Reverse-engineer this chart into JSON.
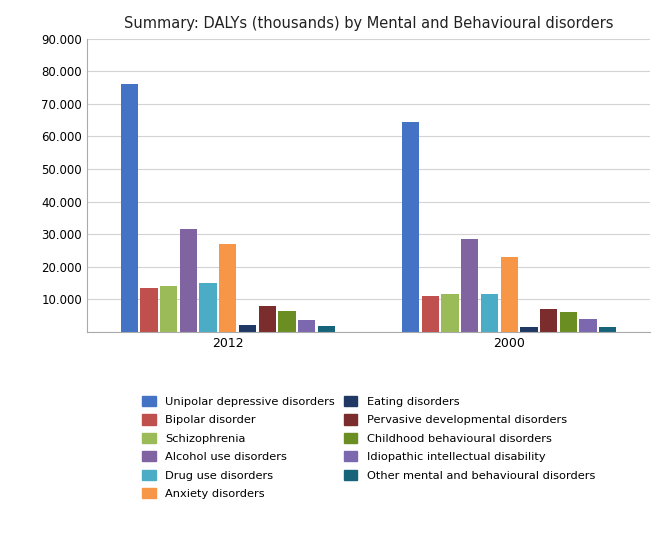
{
  "title": "Summary: DALYs (thousands) by Mental and Behavioural disorders",
  "years": [
    "2012",
    "2000"
  ],
  "categories": [
    "Unipolar depressive disorders",
    "Bipolar disorder",
    "Schizophrenia",
    "Alcohol use disorders",
    "Drug use disorders",
    "Anxiety disorders",
    "Eating disorders",
    "Pervasive developmental disorders",
    "Childhood behavioural disorders",
    "Idiopathic intellectual disability",
    "Other mental and behavioural disorders"
  ],
  "legend_col1": [
    "Unipolar depressive disorders",
    "Schizophrenia",
    "Drug use disorders",
    "Eating disorders",
    "Childhood behavioural disorders",
    "Other mental and behavioural disorders"
  ],
  "legend_col2": [
    "Bipolar disorder",
    "Alcohol use disorders",
    "Anxiety disorders",
    "Pervasive developmental disorders",
    "Idiopathic intellectual disability"
  ],
  "colors": {
    "Unipolar depressive disorders": "#4472C4",
    "Bipolar disorder": "#C0504D",
    "Schizophrenia": "#9BBB59",
    "Alcohol use disorders": "#8064A2",
    "Drug use disorders": "#4BACC6",
    "Anxiety disorders": "#F79646",
    "Eating disorders": "#1F3864",
    "Pervasive developmental disorders": "#7B2C2C",
    "Childhood behavioural disorders": "#6B8E23",
    "Idiopathic intellectual disability": "#7B68AE",
    "Other mental and behavioural disorders": "#17647A"
  },
  "values_2012": [
    76000,
    13500,
    14000,
    31500,
    15000,
    27000,
    2200,
    8000,
    6500,
    3500,
    1800
  ],
  "values_2000": [
    64500,
    11000,
    11500,
    28500,
    11500,
    23000,
    1600,
    7000,
    6000,
    3800,
    1500
  ],
  "ylim": [
    0,
    90000
  ],
  "yticks": [
    0,
    10000,
    20000,
    30000,
    40000,
    50000,
    60000,
    70000,
    80000,
    90000
  ],
  "ytick_labels": [
    "",
    "10.000",
    "20.000",
    "30.000",
    "40.000",
    "50.000",
    "60.000",
    "70.000",
    "80.000",
    "90.000"
  ],
  "background_color": "#FFFFFF",
  "grid_color": "#D3D3D3",
  "border_color": "#AAAAAA"
}
